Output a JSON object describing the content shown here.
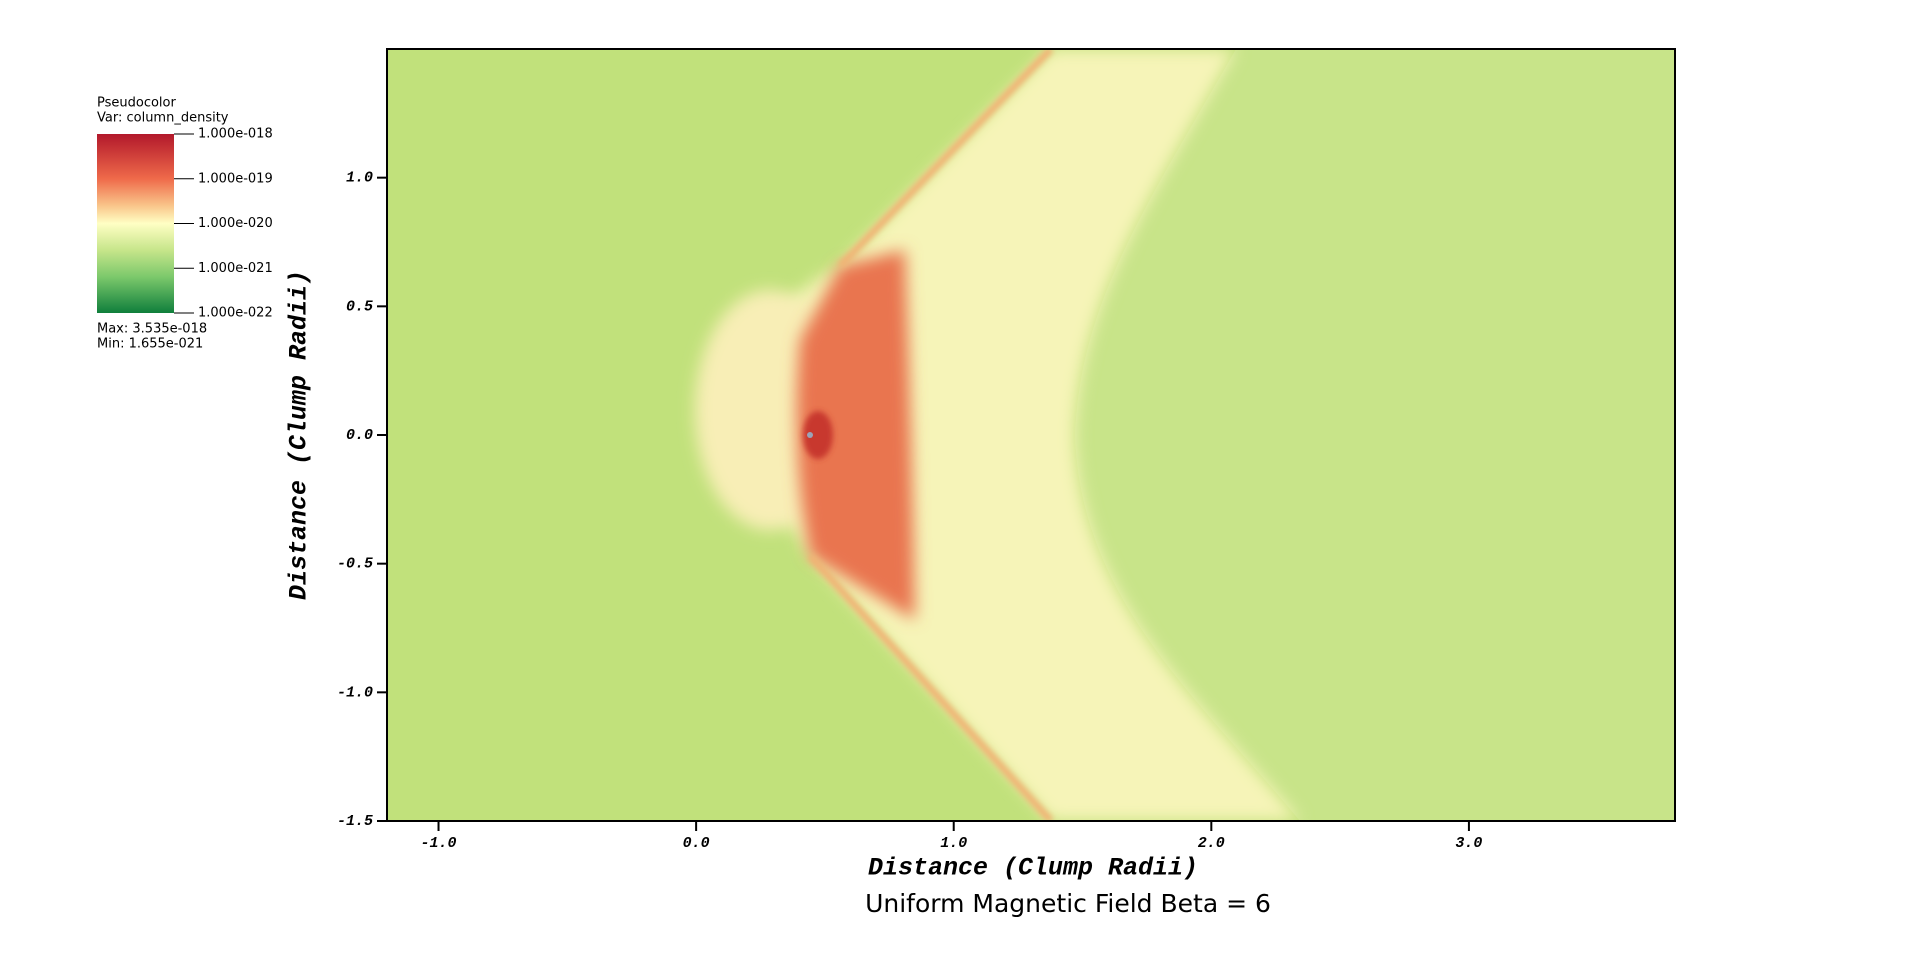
{
  "chart_data": {
    "type": "heatmap",
    "title": "Uniform Magnetic Field Beta = 6",
    "xlabel": "Distance (Clump Radii)",
    "ylabel": "Distance (Clump Radii)",
    "xlim": [
      -1.2,
      3.8
    ],
    "ylim": [
      -1.5,
      1.5
    ],
    "xticks": [
      {
        "value": -1,
        "label": "-1.0"
      },
      {
        "value": 0,
        "label": "0.0"
      },
      {
        "value": 1,
        "label": "1.0"
      },
      {
        "value": 2,
        "label": "2.0"
      },
      {
        "value": 3,
        "label": "3.0"
      }
    ],
    "yticks": [
      {
        "value": 1,
        "label": "1.0"
      },
      0.5,
      {
        "value": 0,
        "label": "0.0"
      },
      -0.5,
      {
        "value": -1,
        "label": "-1.0"
      },
      -1.5
    ],
    "colorbar": {
      "title": "Pseudocolor",
      "variable": "Var: column_density",
      "clim": [
        1e-22,
        1e-18
      ],
      "log": true,
      "ticks": [
        {
          "value": 1e-18,
          "label": "1.000e-018"
        },
        {
          "value": 1e-19,
          "label": "1.000e-019"
        },
        {
          "value": 1e-20,
          "label": "1.000e-020"
        },
        {
          "value": 1e-21,
          "label": "1.000e-021"
        },
        {
          "value": 1e-22,
          "label": "1.000e-022"
        }
      ],
      "max_label": "Max:  3.535e-018",
      "min_label": "Min:  1.655e-021"
    }
  }
}
